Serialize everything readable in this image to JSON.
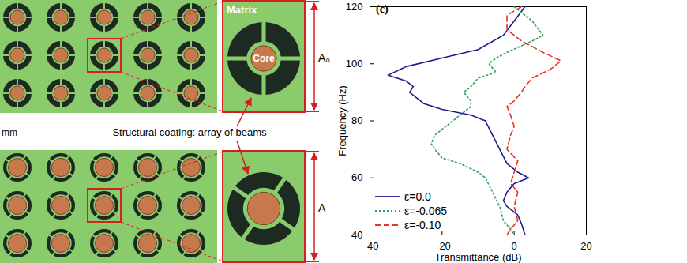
{
  "figure": {
    "matrix_label": "Matrix",
    "core_label": "Core",
    "coating_label": "Structural coating: array of beams",
    "scale_label": "mm",
    "a0_label": "A₀",
    "a_label": "A"
  },
  "chart_data": {
    "type": "line",
    "title": "(c)",
    "x_label": "Transmittance (dB)",
    "y_label": "Frequency (Hz)",
    "xlim": [
      -40,
      20
    ],
    "xticks": [
      -40,
      -20,
      0,
      20
    ],
    "ylim": [
      40,
      120
    ],
    "yticks": [
      40,
      60,
      80,
      100,
      120
    ],
    "legend": "lower left",
    "series": [
      {
        "name": "ε=0.0",
        "color": "#1c1c8c",
        "line_style": "solid",
        "x": [
          3,
          0,
          -3,
          -10,
          -20,
          -30,
          -35,
          -30,
          -28,
          -29,
          -27,
          -25,
          -20,
          -12,
          -8,
          -6,
          -4,
          -2,
          1,
          4,
          0,
          -2,
          -3,
          -2,
          1,
          2,
          3
        ],
        "y": [
          120,
          115,
          110,
          105,
          102,
          99,
          96,
          94,
          92,
          90,
          88,
          86,
          84,
          82,
          80,
          75,
          70,
          65,
          62,
          60,
          58,
          55,
          52,
          50,
          47,
          44,
          40
        ]
      },
      {
        "name": "ε=-0.065",
        "color": "#2e9e5b",
        "line_style": "dotted",
        "x": [
          0,
          5,
          8,
          5,
          -2,
          -5,
          -7,
          -5,
          -10,
          -12,
          -14,
          -12,
          -12,
          -15,
          -17,
          -22,
          -23,
          -22,
          -20,
          -15,
          -10,
          -8,
          -6,
          -4,
          -3,
          -1,
          0
        ],
        "y": [
          120,
          115,
          110,
          108,
          104,
          102,
          100,
          97,
          95,
          92,
          90,
          87,
          85,
          82,
          80,
          75,
          72,
          70,
          67,
          65,
          62,
          60,
          55,
          50,
          45,
          42,
          40
        ]
      },
      {
        "name": "ε=-0.10",
        "color": "#e8322c",
        "line_style": "dashed",
        "x": [
          2,
          -2,
          -2,
          2,
          8,
          13,
          10,
          5,
          3,
          2,
          0,
          -2,
          -1,
          0,
          -1,
          -2,
          1,
          0,
          -1,
          1,
          0,
          1,
          -1,
          -2
        ],
        "y": [
          120,
          117,
          112,
          108,
          104,
          101,
          98,
          95,
          92,
          90,
          87,
          85,
          82,
          78,
          75,
          70,
          66,
          62,
          58,
          55,
          50,
          45,
          42,
          40
        ]
      }
    ]
  }
}
